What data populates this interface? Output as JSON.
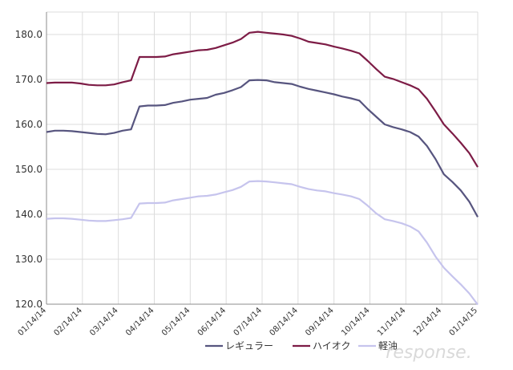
{
  "chart_data": {
    "type": "line",
    "title": "",
    "xlabel": "",
    "ylabel": "",
    "ylim": [
      120,
      185
    ],
    "yticks": [
      120,
      130,
      140,
      150,
      160,
      170,
      180
    ],
    "ytick_labels": [
      "120.0",
      "130.0",
      "140.0",
      "150.0",
      "160.0",
      "170.0",
      "180.0"
    ],
    "grid": true,
    "legend_position": "bottom",
    "xtick_labels": [
      "01/14/14",
      "02/14/14",
      "03/14/14",
      "04/14/14",
      "05/14/14",
      "06/14/14",
      "07/14/14",
      "08/14/14",
      "09/14/14",
      "10/14/14",
      "11/14/14",
      "12/14/14",
      "01/14/15"
    ],
    "series": [
      {
        "name": "レギュラー",
        "color": "#57557f",
        "values": [
          158.3,
          158.6,
          158.6,
          158.5,
          158.3,
          158.1,
          157.9,
          157.8,
          158.1,
          158.6,
          158.9,
          164.0,
          164.2,
          164.2,
          164.3,
          164.8,
          165.1,
          165.5,
          165.7,
          165.9,
          166.6,
          167.0,
          167.6,
          168.3,
          169.8,
          169.9,
          169.8,
          169.4,
          169.2,
          169.0,
          168.4,
          167.9,
          167.5,
          167.1,
          166.7,
          166.2,
          165.8,
          165.3,
          163.4,
          161.7,
          160.0,
          159.4,
          158.9,
          158.3,
          157.3,
          155.2,
          152.3,
          148.9,
          147.2,
          145.3,
          142.8,
          139.4
        ]
      },
      {
        "name": "ハイオク",
        "color": "#7d1c46",
        "values": [
          169.2,
          169.3,
          169.3,
          169.3,
          169.1,
          168.8,
          168.7,
          168.7,
          168.9,
          169.4,
          169.8,
          175.0,
          175.0,
          175.0,
          175.1,
          175.6,
          175.9,
          176.2,
          176.5,
          176.6,
          177.0,
          177.6,
          178.2,
          179.0,
          180.4,
          180.6,
          180.4,
          180.2,
          180.0,
          179.7,
          179.1,
          178.4,
          178.1,
          177.8,
          177.3,
          176.9,
          176.4,
          175.8,
          174.1,
          172.3,
          170.6,
          170.1,
          169.4,
          168.7,
          167.8,
          165.7,
          162.9,
          160.0,
          158.0,
          155.9,
          153.6,
          150.5
        ]
      },
      {
        "name": "軽油",
        "color": "#c6c4ed",
        "values": [
          139.0,
          139.1,
          139.1,
          139.0,
          138.8,
          138.6,
          138.5,
          138.5,
          138.7,
          138.9,
          139.2,
          142.4,
          142.5,
          142.5,
          142.6,
          143.1,
          143.4,
          143.7,
          144.0,
          144.1,
          144.4,
          144.9,
          145.4,
          146.1,
          147.3,
          147.4,
          147.3,
          147.1,
          146.9,
          146.7,
          146.1,
          145.6,
          145.3,
          145.1,
          144.7,
          144.4,
          144.0,
          143.4,
          141.9,
          140.2,
          138.9,
          138.5,
          138.0,
          137.3,
          136.2,
          133.7,
          130.6,
          128.1,
          126.2,
          124.4,
          122.4,
          119.9
        ]
      }
    ]
  },
  "watermark": {
    "text": "response."
  }
}
